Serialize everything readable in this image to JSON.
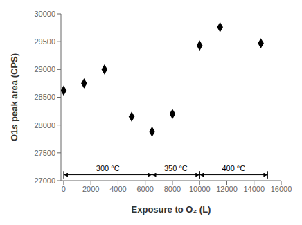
{
  "chart_data": {
    "type": "scatter",
    "xlabel": "Exposure to O₂ (L)",
    "ylabel": "O1s peak area (CPS)",
    "x": [
      0,
      1500,
      3000,
      5000,
      6500,
      8000,
      10000,
      11500,
      14500
    ],
    "values": [
      28620,
      28750,
      29000,
      28150,
      27880,
      28200,
      29430,
      29760,
      29470
    ],
    "xlim": [
      -200,
      16000
    ],
    "ylim": [
      27000,
      30000
    ],
    "xticks": [
      0,
      2000,
      4000,
      6000,
      8000,
      10000,
      12000,
      14000,
      16000
    ],
    "yticks": [
      27000,
      27500,
      28000,
      28500,
      29000,
      29500,
      30000
    ],
    "color": "black",
    "marker": "diamond",
    "grid": false,
    "annotations": [
      {
        "label": "300 °C",
        "x_start": 0,
        "x_end": 6500
      },
      {
        "label": "350 °C",
        "x_start": 6500,
        "x_end": 10000
      },
      {
        "label": "400 °C",
        "x_start": 10000,
        "x_end": 15000
      }
    ]
  }
}
